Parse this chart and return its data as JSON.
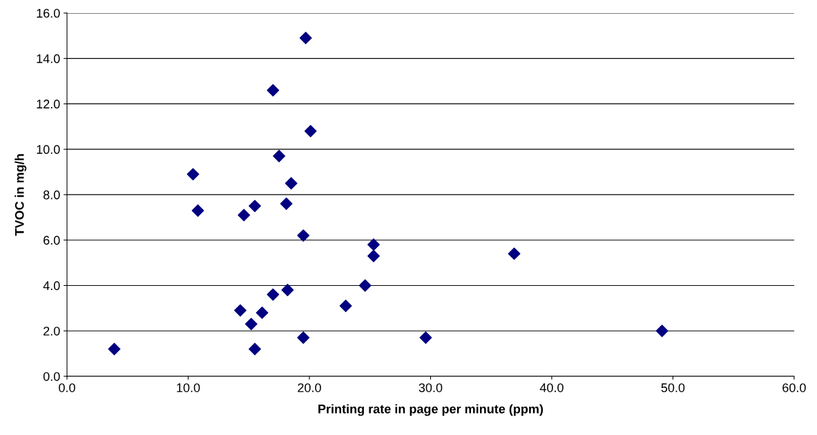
{
  "chart_data": {
    "type": "scatter",
    "xlabel": "Printing rate in page per minute (ppm)",
    "ylabel": "TVOC in mg/h",
    "x": [
      3.9,
      10.4,
      10.8,
      14.6,
      15.5,
      14.3,
      15.2,
      15.5,
      16.1,
      17.0,
      17.0,
      17.5,
      18.1,
      18.2,
      18.5,
      19.5,
      19.5,
      19.7,
      20.1,
      23.0,
      24.6,
      25.3,
      25.3,
      29.6,
      36.9,
      49.1
    ],
    "series": [
      {
        "color": "#000080",
        "values": [
          1.2,
          8.9,
          7.3,
          7.1,
          7.5,
          2.9,
          2.3,
          1.2,
          2.8,
          12.6,
          3.6,
          9.7,
          7.6,
          3.8,
          8.5,
          6.2,
          1.7,
          14.9,
          10.8,
          3.1,
          4.0,
          5.8,
          5.3,
          1.7,
          5.4,
          2.0
        ]
      }
    ],
    "xlim": [
      0,
      60
    ],
    "xticks": [
      {
        "value": 0,
        "label": "0.0"
      },
      {
        "value": 10,
        "label": "10.0"
      },
      {
        "value": 20,
        "label": "20.0"
      },
      {
        "value": 30,
        "label": "30.0"
      },
      {
        "value": 40,
        "label": "40.0"
      },
      {
        "value": 50,
        "label": "50.0"
      },
      {
        "value": 60,
        "label": "60.0"
      }
    ],
    "ylim": [
      0,
      16
    ],
    "yticks": [
      {
        "value": 0,
        "label": "0.0"
      },
      {
        "value": 2,
        "label": "2.0"
      },
      {
        "value": 4,
        "label": "4.0"
      },
      {
        "value": 6,
        "label": "6.0"
      },
      {
        "value": 8,
        "label": "8.0"
      },
      {
        "value": 10,
        "label": "10.0"
      },
      {
        "value": 12,
        "label": "12.0"
      },
      {
        "value": 14,
        "label": "14.0"
      },
      {
        "value": 16,
        "label": "16.0"
      }
    ],
    "grid": "y",
    "marker": "diamond"
  }
}
